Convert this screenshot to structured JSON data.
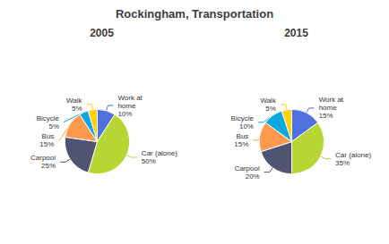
{
  "title": "Rockingham, Transportation",
  "chart_data": [
    {
      "type": "pie",
      "title": "2005",
      "categories": [
        "Work at\nhome",
        "Car (alone)",
        "Carpool",
        "Bus",
        "Bicycle",
        "Walk"
      ],
      "values": [
        10,
        50,
        25,
        15,
        5,
        5
      ],
      "value_labels": [
        "10%",
        "50%",
        "25%",
        "15%",
        "5%",
        "5%"
      ],
      "data_labels": true
    },
    {
      "type": "pie",
      "title": "2015",
      "categories": [
        "Work at\nhome",
        "Car (alone)",
        "Carpool",
        "Bus",
        "Bicycle",
        "Walk"
      ],
      "values": [
        15,
        35,
        20,
        15,
        10,
        5
      ],
      "value_labels": [
        "15%",
        "35%",
        "20%",
        "15%",
        "10%",
        "5%"
      ],
      "data_labels": true
    }
  ]
}
